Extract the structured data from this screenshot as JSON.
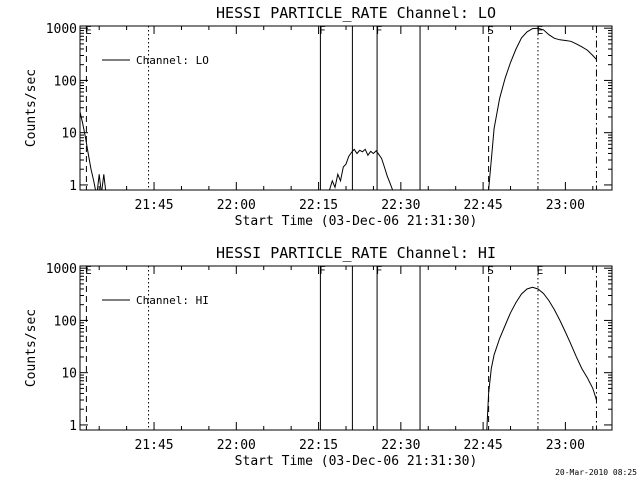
{
  "footer": "20-Mar-2010 08:25",
  "chart_data": [
    {
      "type": "line",
      "title": "HESSI PARTICLE_RATE Channel: LO",
      "xlabel": "Start Time (03-Dec-06 21:31:30)",
      "ylabel": "Counts/sec",
      "yscale": "log",
      "ylim": [
        0.8,
        1100
      ],
      "xlim": [
        "21:31:30",
        "23:08:30"
      ],
      "xticks": [
        "21:45",
        "22:00",
        "22:15",
        "22:30",
        "22:45",
        "23:00"
      ],
      "yticks": [
        "1",
        "10",
        "100",
        "1000"
      ],
      "legend": {
        "position": "top-left",
        "label": "Channel: LO"
      },
      "markers": [
        {
          "time": "21:32:40",
          "style": "dashed",
          "label": "E"
        },
        {
          "time": "21:44:00",
          "style": "dotted",
          "label": ""
        },
        {
          "time": "22:15:20",
          "style": "solid",
          "label": "F"
        },
        {
          "time": "22:21:10",
          "style": "solid",
          "label": ""
        },
        {
          "time": "22:25:40",
          "style": "solid",
          "label": "F"
        },
        {
          "time": "22:33:30",
          "style": "solid",
          "label": ""
        },
        {
          "time": "22:46:00",
          "style": "dashed",
          "label": "S"
        },
        {
          "time": "22:55:00",
          "style": "dotted",
          "label": "E"
        },
        {
          "time": "23:05:40",
          "style": "dashdot",
          "label": ""
        }
      ],
      "series": [
        {
          "segments": [
            {
              "x": [
                "21:31:30",
                "21:32:00",
                "21:32:30",
                "21:33:00",
                "21:33:30",
                "21:34:00",
                "21:34:20"
              ],
              "y": [
                25,
                15,
                8,
                4,
                2,
                1.2,
                0.8
              ]
            },
            {
              "x": [
                "21:34:40",
                "21:35:00",
                "21:35:20"
              ],
              "y": [
                0.8,
                1.6,
                0.8
              ]
            },
            {
              "x": [
                "21:35:30",
                "21:35:50",
                "21:36:10"
              ],
              "y": [
                0.8,
                1.6,
                0.8
              ]
            },
            {
              "x": [
                "22:17:00",
                "22:17:30",
                "22:18:00",
                "22:18:30",
                "22:19:00",
                "22:19:30",
                "22:20:00",
                "22:20:30",
                "22:21:00",
                "22:21:30",
                "22:22:00",
                "22:22:30",
                "22:23:00",
                "22:23:30",
                "22:24:00",
                "22:24:30",
                "22:25:00",
                "22:25:30",
                "22:26:00",
                "22:26:30",
                "22:27:00",
                "22:27:30",
                "22:28:00",
                "22:28:30"
              ],
              "y": [
                0.8,
                1.2,
                0.9,
                1.6,
                1.2,
                2.2,
                2.5,
                3.5,
                4.2,
                4.8,
                4.0,
                4.6,
                4.3,
                4.8,
                3.7,
                4.4,
                4.0,
                4.5,
                3.8,
                3.2,
                2.2,
                1.5,
                1.1,
                0.8
              ]
            },
            {
              "x": [
                "22:46:00",
                "22:46:30",
                "22:47:00",
                "22:48:00",
                "22:49:00",
                "22:50:00",
                "22:51:00",
                "22:52:00",
                "22:53:00",
                "22:54:00",
                "22:55:00",
                "22:56:00",
                "22:57:00",
                "22:58:00",
                "22:59:00",
                "23:00:00",
                "23:01:00",
                "23:02:00",
                "23:03:00",
                "23:04:00",
                "23:05:00",
                "23:05:40"
              ],
              "y": [
                0.8,
                3,
                12,
                45,
                110,
                220,
                400,
                650,
                850,
                980,
                1000,
                930,
                750,
                640,
                600,
                580,
                560,
                500,
                440,
                380,
                300,
                250
              ]
            }
          ]
        }
      ]
    },
    {
      "type": "line",
      "title": "HESSI PARTICLE_RATE Channel: HI",
      "xlabel": "Start Time (03-Dec-06 21:31:30)",
      "ylabel": "Counts/sec",
      "yscale": "log",
      "ylim": [
        0.8,
        1100
      ],
      "xlim": [
        "21:31:30",
        "23:08:30"
      ],
      "xticks": [
        "21:45",
        "22:00",
        "22:15",
        "22:30",
        "22:45",
        "23:00"
      ],
      "yticks": [
        "1",
        "10",
        "100",
        "1000"
      ],
      "legend": {
        "position": "top-left",
        "label": "Channel: HI"
      },
      "markers": [
        {
          "time": "21:32:40",
          "style": "dashed",
          "label": "E"
        },
        {
          "time": "21:44:00",
          "style": "dotted",
          "label": ""
        },
        {
          "time": "22:15:20",
          "style": "solid",
          "label": "F"
        },
        {
          "time": "22:21:10",
          "style": "solid",
          "label": ""
        },
        {
          "time": "22:25:40",
          "style": "solid",
          "label": "F"
        },
        {
          "time": "22:33:30",
          "style": "solid",
          "label": ""
        },
        {
          "time": "22:46:00",
          "style": "dashed",
          "label": "S"
        },
        {
          "time": "22:55:00",
          "style": "dotted",
          "label": "E"
        },
        {
          "time": "23:05:40",
          "style": "dashdot",
          "label": ""
        }
      ],
      "series": [
        {
          "segments": [
            {
              "x": [
                "22:45:40",
                "22:46:00",
                "22:46:30",
                "22:47:00",
                "22:48:00",
                "22:49:00",
                "22:50:00",
                "22:51:00",
                "22:52:00",
                "22:53:00",
                "22:54:00",
                "22:55:00",
                "22:56:00",
                "22:57:00",
                "22:58:00",
                "22:59:00",
                "23:00:00",
                "23:01:00",
                "23:02:00",
                "23:03:00",
                "23:04:00",
                "23:05:00",
                "23:05:40"
              ],
              "y": [
                0.8,
                4,
                12,
                22,
                45,
                80,
                140,
                220,
                320,
                400,
                430,
                400,
                330,
                240,
                160,
                100,
                60,
                35,
                20,
                12,
                8,
                5,
                3
              ]
            }
          ]
        }
      ]
    }
  ]
}
